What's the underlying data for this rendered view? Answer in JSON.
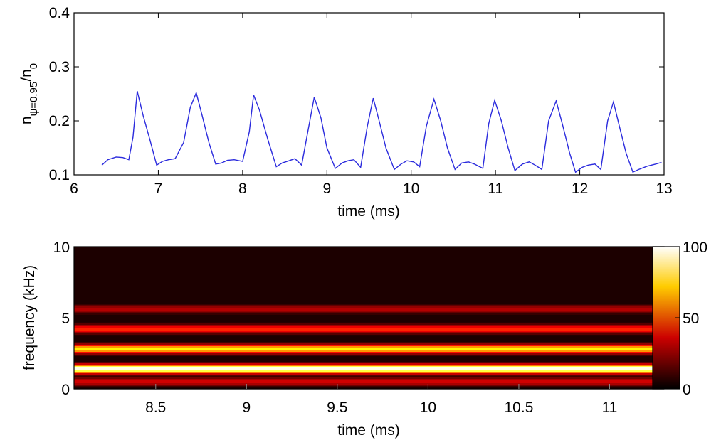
{
  "chart_data": [
    {
      "type": "line",
      "xlabel": "time (ms)",
      "ylabel": {
        "base": "n",
        "sub": "ψ=0.95",
        "slash": "/n",
        "sub2": "0"
      },
      "xlim": [
        6,
        13
      ],
      "ylim": [
        0.1,
        0.4
      ],
      "xticks": [
        "6",
        "7",
        "8",
        "9",
        "10",
        "11",
        "12",
        "13"
      ],
      "yticks": [
        "0.1",
        "0.2",
        "0.3",
        "0.4"
      ],
      "line_color": "#2b2bdd",
      "series": [
        {
          "x": [
            6.33,
            6.4,
            6.5,
            6.58,
            6.65,
            6.7,
            6.75,
            6.82,
            6.9,
            6.98,
            7.05,
            7.12,
            7.2,
            7.3,
            7.38,
            7.45,
            7.52,
            7.6,
            7.68,
            7.75,
            7.82,
            7.9,
            8.0,
            8.08,
            8.13,
            8.2,
            8.3,
            8.4,
            8.47,
            8.55,
            8.62,
            8.7,
            8.78,
            8.85,
            8.93,
            9.0,
            9.1,
            9.18,
            9.25,
            9.32,
            9.4,
            9.48,
            9.55,
            9.62,
            9.7,
            9.8,
            9.88,
            9.95,
            10.03,
            10.1,
            10.18,
            10.27,
            10.35,
            10.43,
            10.52,
            10.6,
            10.68,
            10.75,
            10.85,
            10.92,
            10.99,
            11.07,
            11.15,
            11.23,
            11.32,
            11.4,
            11.47,
            11.55,
            11.63,
            11.72,
            11.8,
            11.88,
            11.95,
            12.03,
            12.1,
            12.18,
            12.25,
            12.33,
            12.4,
            12.47,
            12.55,
            12.63,
            12.7,
            12.8,
            12.9,
            12.97
          ],
          "y": [
            0.118,
            0.128,
            0.133,
            0.132,
            0.128,
            0.17,
            0.255,
            0.21,
            0.165,
            0.118,
            0.125,
            0.128,
            0.13,
            0.16,
            0.225,
            0.252,
            0.21,
            0.16,
            0.12,
            0.122,
            0.127,
            0.128,
            0.125,
            0.18,
            0.248,
            0.22,
            0.165,
            0.115,
            0.122,
            0.126,
            0.13,
            0.118,
            0.185,
            0.244,
            0.205,
            0.15,
            0.112,
            0.122,
            0.126,
            0.128,
            0.114,
            0.19,
            0.242,
            0.2,
            0.15,
            0.11,
            0.12,
            0.126,
            0.124,
            0.115,
            0.19,
            0.24,
            0.2,
            0.15,
            0.11,
            0.122,
            0.124,
            0.12,
            0.112,
            0.195,
            0.238,
            0.2,
            0.15,
            0.108,
            0.12,
            0.124,
            0.118,
            0.11,
            0.2,
            0.237,
            0.19,
            0.14,
            0.105,
            0.114,
            0.118,
            0.12,
            0.11,
            0.2,
            0.235,
            0.19,
            0.14,
            0.105,
            0.11,
            0.116,
            0.12,
            0.123
          ]
        }
      ]
    },
    {
      "type": "heatmap",
      "xlabel": "time (ms)",
      "ylabel": "frequency (kHz)",
      "xlim": [
        8.05,
        11.3
      ],
      "ylim": [
        0,
        10
      ],
      "xticks": [
        "8.5",
        "9",
        "9.5",
        "10",
        "10.5",
        "11"
      ],
      "yticks": [
        "0",
        "5",
        "10"
      ],
      "colorbar": {
        "min": 0,
        "max": 100,
        "ticks": [
          "0",
          "50",
          "100"
        ],
        "colormap": "hot"
      },
      "bands": [
        {
          "freq": 1.4,
          "intensity": 100
        },
        {
          "freq": 2.8,
          "intensity": 72
        },
        {
          "freq": 4.2,
          "intensity": 42
        },
        {
          "freq": 5.6,
          "intensity": 26
        },
        {
          "freq": 0.5,
          "intensity": 30
        }
      ]
    }
  ]
}
